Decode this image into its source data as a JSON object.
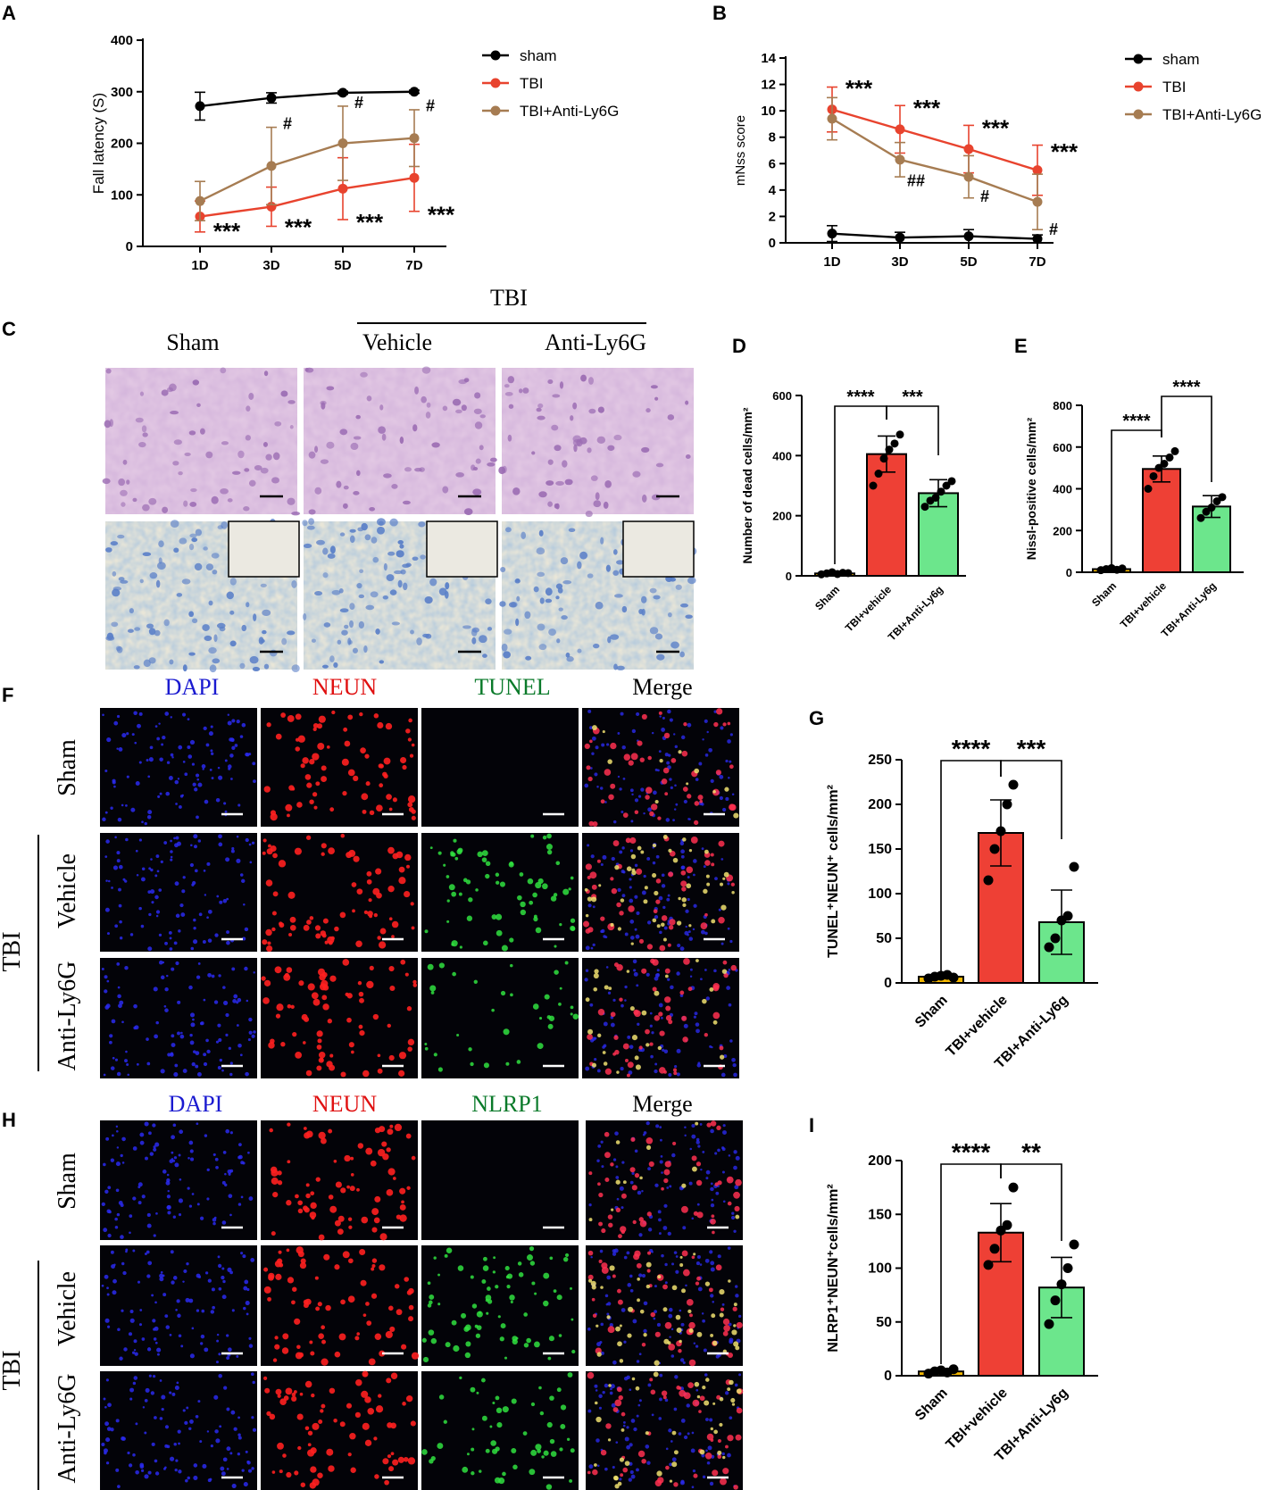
{
  "panel_letters": [
    "A",
    "B",
    "C",
    "D",
    "E",
    "F",
    "G",
    "H",
    "I"
  ],
  "colors": {
    "sham": "#000000",
    "tbi": "#e8432e",
    "anti": "#a67c52",
    "bar_sham": "#f5b800",
    "bar_vehicle": "#ee4035",
    "bar_anti": "#6ce68c",
    "dapi": "#1a1ad0",
    "neun": "#e01010",
    "green": "#0a7a2a"
  },
  "panelC": {
    "header": "TBI",
    "columns": [
      "Sham",
      "Vehicle",
      "Anti-Ly6G"
    ]
  },
  "panelF": {
    "channels": [
      "DAPI",
      "NEUN",
      "TUNEL",
      "Merge"
    ],
    "rows": [
      "Sham",
      "Vehicle",
      "Anti-Ly6G"
    ],
    "group": "TBI"
  },
  "panelH": {
    "channels": [
      "DAPI",
      "NEUN",
      "NLRP1",
      "Merge"
    ],
    "rows": [
      "Sham",
      "Vehicle",
      "Anti-Ly6G"
    ],
    "group": "TBI"
  },
  "chart_data": [
    {
      "id": "A",
      "type": "line",
      "ylabel": "Fall latency  (S)",
      "categories": [
        "1D",
        "3D",
        "5D",
        "7D"
      ],
      "ylim": [
        0,
        400
      ],
      "yticks": [
        0,
        100,
        200,
        300,
        400
      ],
      "legend": "top-right",
      "series": [
        {
          "name": "sham",
          "color": "#000000",
          "values": [
            272,
            288,
            298,
            300
          ],
          "err": [
            27,
            10,
            3,
            3
          ]
        },
        {
          "name": "TBI",
          "color": "#e8432e",
          "values": [
            58,
            77,
            112,
            133
          ],
          "err": [
            30,
            38,
            60,
            65
          ]
        },
        {
          "name": "TBI+Anti-Ly6G",
          "color": "#a67c52",
          "values": [
            88,
            156,
            200,
            210
          ],
          "err": [
            38,
            75,
            72,
            55
          ]
        }
      ],
      "annotations": [
        {
          "text": "***",
          "cat": 0,
          "y": 35
        },
        {
          "text": "***",
          "cat": 1,
          "y": 42
        },
        {
          "text": "***",
          "cat": 2,
          "y": 52
        },
        {
          "text": "***",
          "cat": 3,
          "y": 67
        },
        {
          "text": "#",
          "cat": 1,
          "y": 228
        },
        {
          "text": "#",
          "cat": 2,
          "y": 268
        },
        {
          "text": "#",
          "cat": 3,
          "y": 262
        }
      ]
    },
    {
      "id": "B",
      "type": "line",
      "ylabel": "mNss score",
      "categories": [
        "1D",
        "3D",
        "5D",
        "7D"
      ],
      "ylim": [
        0,
        14
      ],
      "yticks": [
        0,
        2,
        4,
        6,
        8,
        10,
        12,
        14
      ],
      "legend": "top-right",
      "series": [
        {
          "name": "sham",
          "color": "#000000",
          "values": [
            0.7,
            0.4,
            0.5,
            0.3
          ],
          "err": [
            0.6,
            0.4,
            0.5,
            0.3
          ]
        },
        {
          "name": "TBI",
          "color": "#e8432e",
          "values": [
            10.1,
            8.6,
            7.1,
            5.5
          ],
          "err": [
            1.7,
            1.8,
            1.8,
            1.9
          ]
        },
        {
          "name": "TBI+Anti-Ly6G",
          "color": "#a67c52",
          "values": [
            9.4,
            6.3,
            5.0,
            3.1
          ],
          "err": [
            1.6,
            1.3,
            1.6,
            2.1
          ]
        }
      ],
      "annotations": [
        {
          "text": "***",
          "cat": 0,
          "y": 11.9
        },
        {
          "text": "***",
          "cat": 1,
          "y": 10.4
        },
        {
          "text": "***",
          "cat": 2,
          "y": 8.9
        },
        {
          "text": "***",
          "cat": 3,
          "y": 7.1
        },
        {
          "text": "##",
          "cat": 1,
          "y": 4.3
        },
        {
          "text": "#",
          "cat": 2,
          "y": 3.1
        },
        {
          "text": "#",
          "cat": 3,
          "y": 0.6
        }
      ]
    },
    {
      "id": "D",
      "type": "bar",
      "ylabel": "Number of dead cells/mm²",
      "categories": [
        "Sham",
        "TBI+vehicle",
        "TBI+Anti-Ly6g"
      ],
      "ylim": [
        0,
        600
      ],
      "yticks": [
        0,
        200,
        400,
        600
      ],
      "values": [
        8,
        405,
        275
      ],
      "err": [
        4,
        60,
        45
      ],
      "points": [
        [
          5,
          8,
          12,
          6,
          10,
          9
        ],
        [
          300,
          340,
          390,
          420,
          440,
          470
        ],
        [
          230,
          250,
          260,
          280,
          300,
          315
        ]
      ],
      "comparisons": [
        {
          "from": 0,
          "to": 1,
          "text": "****"
        },
        {
          "from": 1,
          "to": 2,
          "text": "***"
        }
      ]
    },
    {
      "id": "E",
      "type": "bar",
      "ylabel": "Nissl-positive cells/mm²",
      "categories": [
        "Sham",
        "TBI+vehicle",
        "TBI+Anti-Ly6g"
      ],
      "ylim": [
        0,
        800
      ],
      "yticks": [
        0,
        200,
        400,
        600,
        800
      ],
      "values": [
        15,
        495,
        315
      ],
      "err": [
        6,
        62,
        52
      ],
      "points": [
        [
          10,
          15,
          20,
          12,
          18
        ],
        [
          400,
          460,
          500,
          520,
          550,
          580
        ],
        [
          260,
          290,
          310,
          340,
          360
        ]
      ],
      "comparisons": [
        {
          "from": 0,
          "to": 1,
          "text": "****"
        },
        {
          "from": 1,
          "to": 2,
          "text": "****"
        }
      ]
    },
    {
      "id": "G",
      "type": "bar",
      "ylabel": "TUNEL⁺NEUN⁺ cells/mm²",
      "categories": [
        "Sham",
        "TBI+vehicle",
        "TBI+Anti-Ly6g"
      ],
      "ylim": [
        0,
        250
      ],
      "yticks": [
        0,
        50,
        100,
        150,
        200,
        250
      ],
      "values": [
        7,
        168,
        68
      ],
      "err": [
        2,
        37,
        36
      ],
      "points": [
        [
          5,
          7,
          8,
          9,
          6
        ],
        [
          115,
          150,
          170,
          200,
          222
        ],
        [
          40,
          50,
          70,
          75,
          130
        ]
      ],
      "comparisons": [
        {
          "from": 0,
          "to": 1,
          "text": "****"
        },
        {
          "from": 1,
          "to": 2,
          "text": "***"
        }
      ]
    },
    {
      "id": "I",
      "type": "bar",
      "ylabel": "NLRP1⁺NEUN⁺cells/mm²",
      "categories": [
        "Sham",
        "TBI+vehicle",
        "TBI+Anti-Ly6g"
      ],
      "ylim": [
        0,
        200
      ],
      "yticks": [
        0,
        50,
        100,
        150,
        200
      ],
      "values": [
        4,
        133,
        82
      ],
      "err": [
        2,
        27,
        28
      ],
      "points": [
        [
          2,
          4,
          5,
          3,
          6
        ],
        [
          103,
          118,
          135,
          140,
          175
        ],
        [
          48,
          70,
          85,
          100,
          122
        ]
      ],
      "comparisons": [
        {
          "from": 0,
          "to": 1,
          "text": "****"
        },
        {
          "from": 1,
          "to": 2,
          "text": "**"
        }
      ]
    }
  ]
}
